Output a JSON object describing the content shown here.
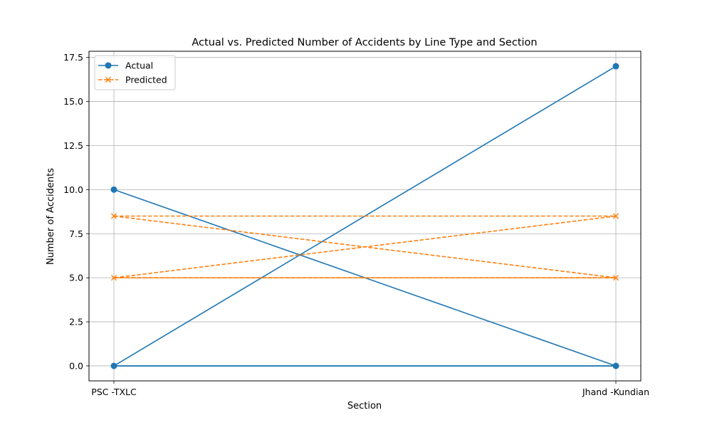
{
  "chart_data": {
    "type": "line",
    "title": "Actual vs. Predicted Number of Accidents by Line Type and Section",
    "xlabel": "Section",
    "ylabel": "Number of Accidents",
    "categories": [
      "PSC -TXLC",
      "Jhand -Kundian"
    ],
    "ylim": [
      -0.85,
      17.85
    ],
    "yticks": [
      "0.0",
      "2.5",
      "5.0",
      "7.5",
      "10.0",
      "12.5",
      "15.0",
      "17.5"
    ],
    "grid": true,
    "legend_position": "top-left",
    "series": [
      {
        "name": "Actual",
        "color": "#1f77b4",
        "marker": "circle",
        "linestyle": "solid",
        "x": [
          "PSC -TXLC",
          "Jhand -Kundian",
          "PSC -TXLC",
          "Jhand -Kundian"
        ],
        "values": [
          10,
          0,
          0,
          17
        ],
        "extra_segments": [
          [
            0,
            0
          ]
        ]
      },
      {
        "name": "Predicted",
        "color": "#ff7f0e",
        "marker": "x",
        "linestyle": "dashed",
        "x": [
          "PSC -TXLC",
          "Jhand -Kundian",
          "PSC -TXLC",
          "Jhand -Kundian"
        ],
        "values": [
          8.5,
          5.0,
          5.0,
          8.5
        ],
        "extra_segments": [
          [
            5.0,
            5.0
          ],
          [
            8.5,
            8.5
          ]
        ]
      }
    ]
  }
}
